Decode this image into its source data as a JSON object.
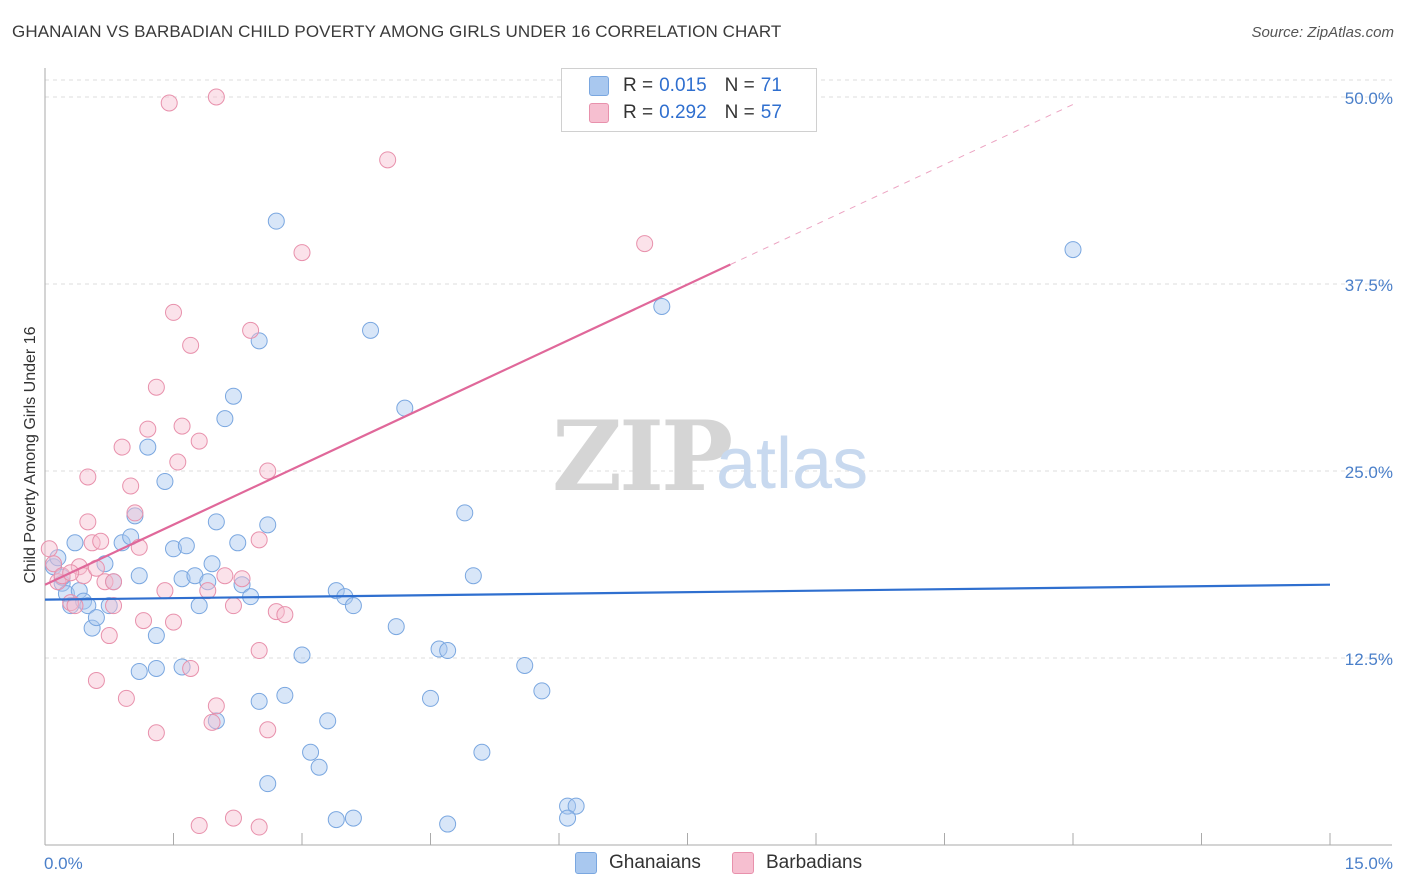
{
  "title": "GHANAIAN VS BARBADIAN CHILD POVERTY AMONG GIRLS UNDER 16 CORRELATION CHART",
  "source": "Source: ZipAtlas.com",
  "watermark": {
    "zip": "ZIP",
    "atlas": "atlas"
  },
  "legend_stats": [
    {
      "r_label": "R =",
      "r_value": "0.015",
      "n_label": "N =",
      "n_value": "71",
      "color": "#a9c8ef",
      "border": "#7aa7e0"
    },
    {
      "r_label": "R =",
      "r_value": "0.292",
      "n_label": "N =",
      "n_value": "57",
      "color": "#f6bfd0",
      "border": "#e891ac"
    }
  ],
  "bottom_legend": [
    {
      "name": "Ghanaians",
      "color": "#a9c8ef",
      "border": "#7aa7e0"
    },
    {
      "name": "Barbadians",
      "color": "#f6bfd0",
      "border": "#e891ac"
    }
  ],
  "chart_data": {
    "type": "scatter",
    "title": "GHANAIAN VS BARBADIAN CHILD POVERTY AMONG GIRLS UNDER 16 CORRELATION CHART",
    "ylabel": "Child Poverty Among Girls Under 16",
    "xlabel": "",
    "xlim": [
      0,
      15
    ],
    "ylim": [
      0,
      50
    ],
    "x_tick_labels": [
      "0.0%",
      "15.0%"
    ],
    "y_ticks": [
      12.5,
      25.0,
      37.5,
      50.0
    ],
    "y_tick_labels": [
      "12.5%",
      "25.0%",
      "37.5%",
      "50.0%"
    ],
    "grid": "horizontal dashed",
    "series": [
      {
        "name": "Ghanaians",
        "color": "#7aa7e0",
        "fill": "rgba(169,200,239,0.45)",
        "trend": {
          "x": [
            0,
            15
          ],
          "y": [
            16.4,
            17.4
          ],
          "color": "#2f6fcf",
          "dashed_extension": false
        },
        "points": [
          [
            0.1,
            18.6
          ],
          [
            0.15,
            19.2
          ],
          [
            0.2,
            17.5
          ],
          [
            0.25,
            16.8
          ],
          [
            0.3,
            16.0
          ],
          [
            0.35,
            20.2
          ],
          [
            0.4,
            17.0
          ],
          [
            0.45,
            16.3
          ],
          [
            0.5,
            16.0
          ],
          [
            0.55,
            14.5
          ],
          [
            0.6,
            15.2
          ],
          [
            0.7,
            18.8
          ],
          [
            0.75,
            16.0
          ],
          [
            0.8,
            17.6
          ],
          [
            0.9,
            20.2
          ],
          [
            1.0,
            20.6
          ],
          [
            1.05,
            22.0
          ],
          [
            1.1,
            18.0
          ],
          [
            1.2,
            26.6
          ],
          [
            1.3,
            14.0
          ],
          [
            1.4,
            24.3
          ],
          [
            1.5,
            19.8
          ],
          [
            1.6,
            17.8
          ],
          [
            1.65,
            20.0
          ],
          [
            1.75,
            18.0
          ],
          [
            1.8,
            16.0
          ],
          [
            1.9,
            17.6
          ],
          [
            1.95,
            18.8
          ],
          [
            2.0,
            21.6
          ],
          [
            2.1,
            28.5
          ],
          [
            2.2,
            30.0
          ],
          [
            2.25,
            20.2
          ],
          [
            2.3,
            17.4
          ],
          [
            2.4,
            16.6
          ],
          [
            2.5,
            33.7
          ],
          [
            2.6,
            21.4
          ],
          [
            2.7,
            41.7
          ],
          [
            2.8,
            10.0
          ],
          [
            3.0,
            12.7
          ],
          [
            3.1,
            6.2
          ],
          [
            3.2,
            5.2
          ],
          [
            3.3,
            8.3
          ],
          [
            3.4,
            17.0
          ],
          [
            3.5,
            16.6
          ],
          [
            3.6,
            16.0
          ],
          [
            3.8,
            34.4
          ],
          [
            4.1,
            14.6
          ],
          [
            4.2,
            29.2
          ],
          [
            4.5,
            9.8
          ],
          [
            4.6,
            13.1
          ],
          [
            4.7,
            13.0
          ],
          [
            4.9,
            22.2
          ],
          [
            5.0,
            18.0
          ],
          [
            5.1,
            6.2
          ],
          [
            5.6,
            12.0
          ],
          [
            5.8,
            10.3
          ],
          [
            6.1,
            2.6
          ],
          [
            6.2,
            2.6
          ],
          [
            7.2,
            36.0
          ],
          [
            12.0,
            39.8
          ],
          [
            1.1,
            11.6
          ],
          [
            1.3,
            11.8
          ],
          [
            1.6,
            11.9
          ],
          [
            2.0,
            8.3
          ],
          [
            2.5,
            9.6
          ],
          [
            2.6,
            4.1
          ],
          [
            3.4,
            1.7
          ],
          [
            3.6,
            1.8
          ],
          [
            4.7,
            1.4
          ],
          [
            6.1,
            1.8
          ],
          [
            0.2,
            17.9
          ]
        ]
      },
      {
        "name": "Barbadians",
        "color": "#e891ac",
        "fill": "rgba(246,191,208,0.45)",
        "trend": {
          "x": [
            0,
            8.0
          ],
          "y": [
            17.4,
            38.8
          ],
          "dash_to": [
            12.0,
            49.5
          ],
          "color": "#e0689a"
        },
        "points": [
          [
            0.05,
            19.8
          ],
          [
            0.1,
            18.8
          ],
          [
            0.15,
            17.6
          ],
          [
            0.2,
            18.0
          ],
          [
            0.3,
            16.2
          ],
          [
            0.35,
            16.0
          ],
          [
            0.4,
            18.6
          ],
          [
            0.45,
            18.0
          ],
          [
            0.5,
            24.6
          ],
          [
            0.55,
            20.2
          ],
          [
            0.6,
            18.5
          ],
          [
            0.65,
            20.3
          ],
          [
            0.7,
            17.6
          ],
          [
            0.75,
            14.0
          ],
          [
            0.8,
            17.6
          ],
          [
            0.9,
            26.6
          ],
          [
            1.0,
            24.0
          ],
          [
            1.05,
            22.2
          ],
          [
            1.1,
            19.9
          ],
          [
            1.2,
            27.8
          ],
          [
            1.3,
            30.6
          ],
          [
            1.4,
            17.0
          ],
          [
            1.5,
            35.6
          ],
          [
            1.55,
            25.6
          ],
          [
            1.6,
            28.0
          ],
          [
            1.7,
            33.4
          ],
          [
            1.8,
            27.0
          ],
          [
            1.9,
            17.0
          ],
          [
            2.0,
            9.3
          ],
          [
            2.1,
            18.0
          ],
          [
            2.2,
            16.0
          ],
          [
            2.3,
            17.8
          ],
          [
            2.4,
            34.4
          ],
          [
            2.5,
            13.0
          ],
          [
            2.6,
            25.0
          ],
          [
            2.7,
            15.6
          ],
          [
            2.8,
            15.4
          ],
          [
            3.0,
            39.6
          ],
          [
            1.45,
            49.6
          ],
          [
            2.0,
            50.0
          ],
          [
            4.0,
            45.8
          ],
          [
            7.0,
            40.2
          ],
          [
            0.6,
            11.0
          ],
          [
            0.95,
            9.8
          ],
          [
            1.3,
            7.5
          ],
          [
            1.5,
            14.9
          ],
          [
            1.7,
            11.8
          ],
          [
            1.95,
            8.2
          ],
          [
            2.2,
            1.8
          ],
          [
            2.5,
            1.2
          ],
          [
            2.6,
            7.7
          ],
          [
            1.8,
            1.3
          ],
          [
            0.5,
            21.6
          ],
          [
            0.8,
            16.0
          ],
          [
            1.15,
            15.0
          ],
          [
            2.5,
            20.4
          ],
          [
            0.3,
            18.2
          ]
        ]
      }
    ]
  }
}
